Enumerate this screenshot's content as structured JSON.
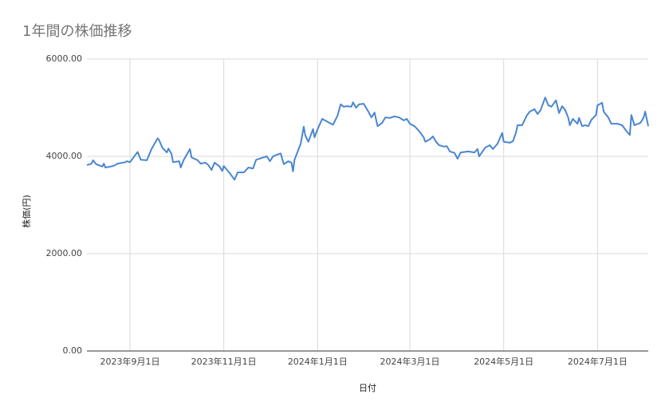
{
  "chart_data": {
    "type": "line",
    "title": "1年間の株価推移",
    "x_label": "日付",
    "y_label": "株価(円)",
    "color": "#4a86d0",
    "grid": true,
    "x": [
      "2023-08-04",
      "2023-08-07",
      "2023-08-08",
      "2023-08-10",
      "2023-08-14",
      "2023-08-15",
      "2023-08-16",
      "2023-08-21",
      "2023-08-24",
      "2023-08-29",
      "2023-08-30",
      "2023-09-01",
      "2023-09-05",
      "2023-09-06",
      "2023-09-08",
      "2023-09-12",
      "2023-09-15",
      "2023-09-19",
      "2023-09-20",
      "2023-09-22",
      "2023-09-25",
      "2023-09-26",
      "2023-09-28",
      "2023-09-29",
      "2023-10-03",
      "2023-10-04",
      "2023-10-06",
      "2023-10-10",
      "2023-10-11",
      "2023-10-15",
      "2023-10-17",
      "2023-10-20",
      "2023-10-22",
      "2023-10-24",
      "2023-10-26",
      "2023-10-29",
      "2023-10-31",
      "2023-11-01",
      "2023-11-05",
      "2023-11-08",
      "2023-11-10",
      "2023-11-14",
      "2023-11-17",
      "2023-11-20",
      "2023-11-22",
      "2023-11-27",
      "2023-11-29",
      "2023-12-01",
      "2023-12-03",
      "2023-12-07",
      "2023-12-08",
      "2023-12-10",
      "2023-12-13",
      "2023-12-15",
      "2023-12-16",
      "2023-12-17",
      "2023-12-21",
      "2023-12-23",
      "2023-12-24",
      "2023-12-26",
      "2023-12-29",
      "2023-12-30",
      "2024-01-01",
      "2024-01-04",
      "2024-01-08",
      "2024-01-11",
      "2024-01-14",
      "2024-01-16",
      "2024-01-18",
      "2024-01-20",
      "2024-01-23",
      "2024-01-24",
      "2024-01-26",
      "2024-01-28",
      "2024-01-31",
      "2024-02-03",
      "2024-02-05",
      "2024-02-07",
      "2024-02-09",
      "2024-02-12",
      "2024-02-14",
      "2024-02-17",
      "2024-02-20",
      "2024-02-23",
      "2024-02-26",
      "2024-02-28",
      "2024-03-01",
      "2024-03-04",
      "2024-03-07",
      "2024-03-10",
      "2024-03-11",
      "2024-03-14",
      "2024-03-16",
      "2024-03-18",
      "2024-03-20",
      "2024-03-23",
      "2024-03-25",
      "2024-03-27",
      "2024-03-30",
      "2024-04-01",
      "2024-04-03",
      "2024-04-08",
      "2024-04-12",
      "2024-04-14",
      "2024-04-15",
      "2024-04-19",
      "2024-04-22",
      "2024-04-24",
      "2024-04-27",
      "2024-04-30",
      "2024-05-01",
      "2024-05-05",
      "2024-05-07",
      "2024-05-09",
      "2024-05-10",
      "2024-05-13",
      "2024-05-16",
      "2024-05-18",
      "2024-05-21",
      "2024-05-23",
      "2024-05-25",
      "2024-05-28",
      "2024-05-30",
      "2024-06-01",
      "2024-06-04",
      "2024-06-06",
      "2024-06-08",
      "2024-06-10",
      "2024-06-12",
      "2024-06-13",
      "2024-06-15",
      "2024-06-18",
      "2024-06-19",
      "2024-06-21",
      "2024-06-23",
      "2024-06-25",
      "2024-06-27",
      "2024-06-30",
      "2024-07-01",
      "2024-07-04",
      "2024-07-05",
      "2024-07-08",
      "2024-07-10",
      "2024-07-14",
      "2024-07-17",
      "2024-07-20",
      "2024-07-22",
      "2024-07-23",
      "2024-07-25",
      "2024-07-29",
      "2024-07-31",
      "2024-08-01",
      "2024-08-03"
    ],
    "values": [
      3820,
      3850,
      3920,
      3840,
      3790,
      3850,
      3770,
      3800,
      3850,
      3880,
      3900,
      3880,
      4050,
      4090,
      3930,
      3920,
      4150,
      4370,
      4330,
      4180,
      4080,
      4160,
      4050,
      3880,
      3900,
      3770,
      3930,
      4150,
      3980,
      3920,
      3850,
      3870,
      3820,
      3720,
      3870,
      3800,
      3700,
      3800,
      3650,
      3520,
      3670,
      3670,
      3770,
      3750,
      3930,
      3980,
      4000,
      3900,
      4000,
      4050,
      4060,
      3840,
      3900,
      3870,
      3690,
      3930,
      4260,
      4610,
      4430,
      4300,
      4560,
      4390,
      4560,
      4770,
      4700,
      4650,
      4840,
      5070,
      5020,
      5030,
      5020,
      5110,
      5000,
      5070,
      5080,
      4920,
      4800,
      4900,
      4620,
      4690,
      4800,
      4790,
      4820,
      4800,
      4740,
      4770,
      4670,
      4620,
      4520,
      4390,
      4300,
      4350,
      4410,
      4300,
      4230,
      4200,
      4210,
      4100,
      4070,
      3950,
      4080,
      4100,
      4080,
      4150,
      4000,
      4180,
      4230,
      4150,
      4260,
      4480,
      4300,
      4280,
      4310,
      4490,
      4640,
      4640,
      4840,
      4920,
      4970,
      4870,
      4950,
      5210,
      5050,
      5020,
      5150,
      4890,
      5030,
      4950,
      4790,
      4640,
      4770,
      4670,
      4790,
      4620,
      4640,
      4620,
      4750,
      4850,
      5050,
      5100,
      4920,
      4800,
      4670,
      4670,
      4640,
      4510,
      4440,
      4850,
      4640,
      4690,
      4800,
      4920,
      4620
    ],
    "xlim": [
      "2023-08-04",
      "2024-08-03"
    ],
    "xticks": [
      {
        "value": "2023-09-01",
        "label": "2023年9月1日"
      },
      {
        "value": "2023-11-01",
        "label": "2023年11月1日"
      },
      {
        "value": "2024-01-01",
        "label": "2024年1月1日"
      },
      {
        "value": "2024-03-01",
        "label": "2024年3月1日"
      },
      {
        "value": "2024-05-01",
        "label": "2024年5月1日"
      },
      {
        "value": "2024-07-01",
        "label": "2024年7月1日"
      }
    ],
    "ylim": [
      0,
      6000
    ],
    "yticks": [
      {
        "value": 0,
        "label": "0.00"
      },
      {
        "value": 2000,
        "label": "2000.00"
      },
      {
        "value": 4000,
        "label": "4000.00"
      },
      {
        "value": 6000,
        "label": "6000.00"
      }
    ]
  }
}
